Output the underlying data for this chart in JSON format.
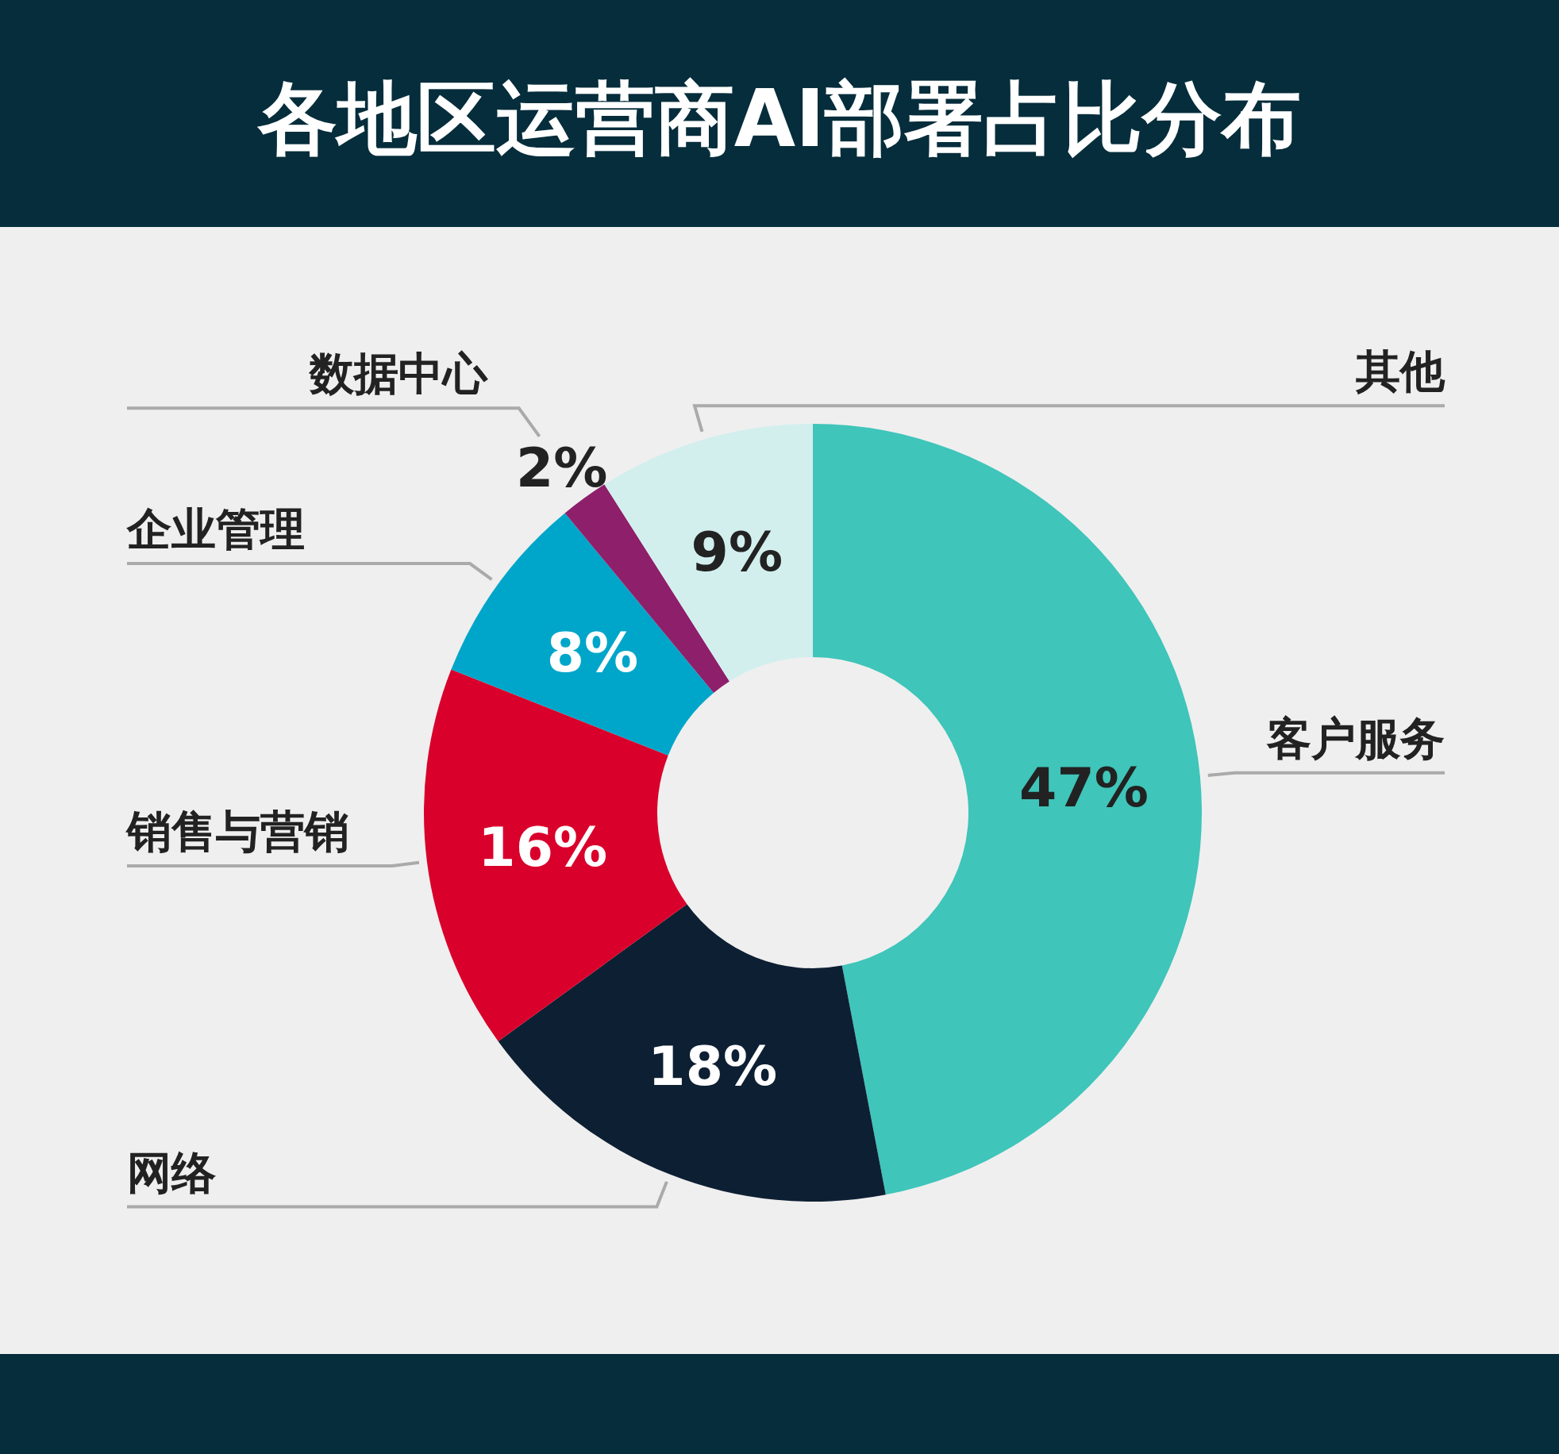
{
  "chart_data": {
    "type": "donut",
    "title": "各地区运营商AI部署占比分布",
    "categories": [
      "客户服务",
      "网络",
      "销售与营销",
      "企业管理",
      "数据中心",
      "其他"
    ],
    "values": [
      47,
      18,
      16,
      8,
      2,
      9
    ],
    "colors": [
      "#3fc5ba",
      "#0d1f33",
      "#d9002b",
      "#00a6c9",
      "#8e1f6a",
      "#d2efee"
    ],
    "value_labels": [
      "47%",
      "18%",
      "16%",
      "8%",
      "2%",
      "9%"
    ]
  }
}
